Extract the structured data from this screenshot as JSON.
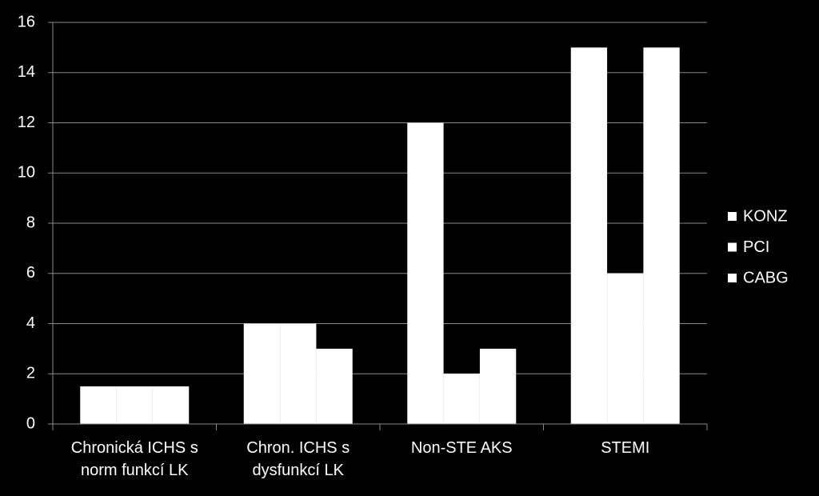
{
  "chart_data": {
    "type": "bar",
    "categories": [
      "Chronická ICHS s norm funkcí LK",
      "Chron. ICHS s dysfunkcí LK",
      "Non-STE AKS",
      "STEMI"
    ],
    "series": [
      {
        "name": "KONZ",
        "color": "#ffffff",
        "values": [
          1.5,
          4,
          12,
          15
        ]
      },
      {
        "name": "PCI",
        "color": "#ffffff",
        "values": [
          1.5,
          4,
          2,
          6
        ]
      },
      {
        "name": "CABG",
        "color": "#ffffff",
        "values": [
          1.5,
          3,
          3,
          15
        ]
      }
    ],
    "ylim": [
      0,
      16
    ],
    "yticks": [
      0,
      2,
      4,
      6,
      8,
      10,
      12,
      14,
      16
    ],
    "grid": true,
    "legend": "right"
  }
}
